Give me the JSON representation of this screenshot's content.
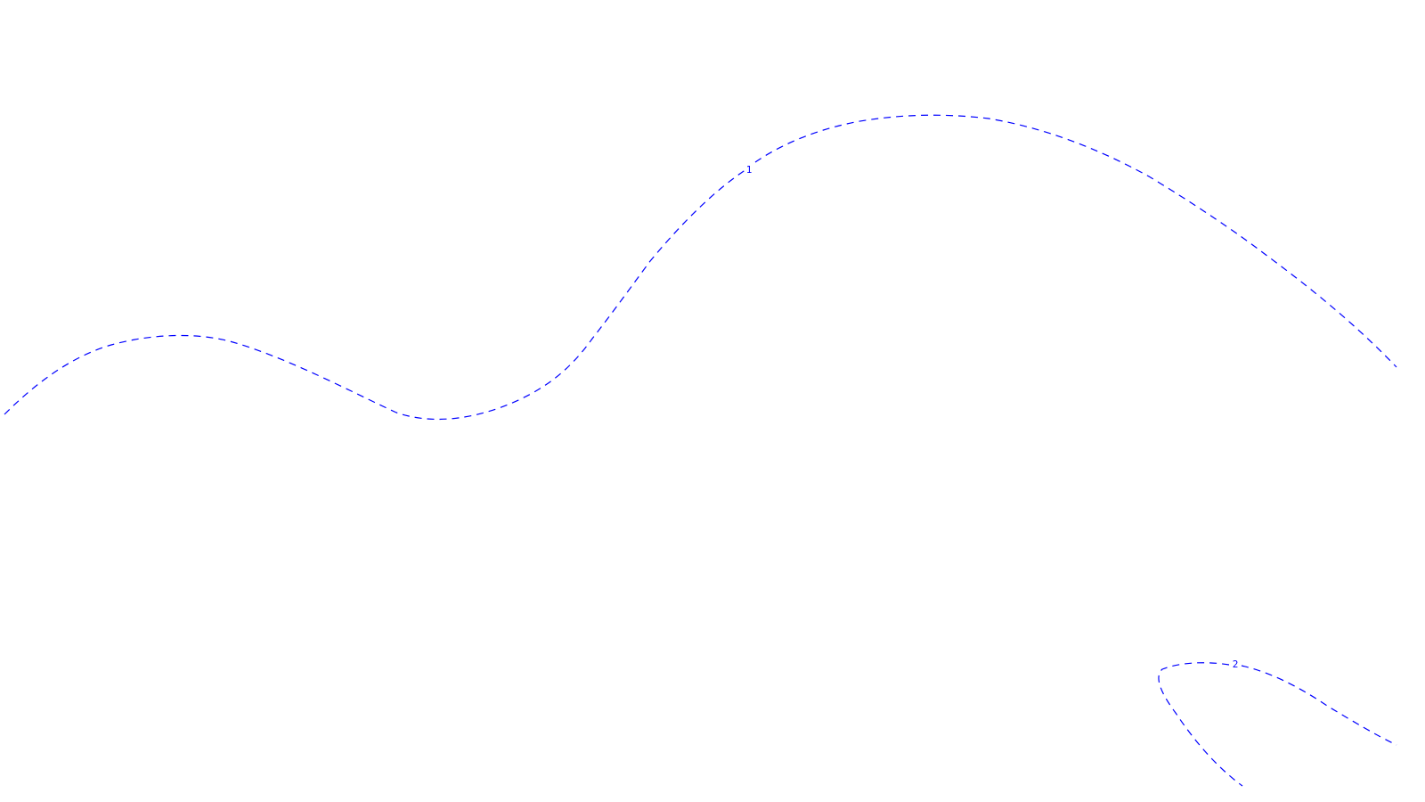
{
  "colors": {
    "background": "#ffffff",
    "contour": "#0000ff"
  },
  "contours": [
    {
      "label": "1"
    },
    {
      "label": "2"
    }
  ]
}
